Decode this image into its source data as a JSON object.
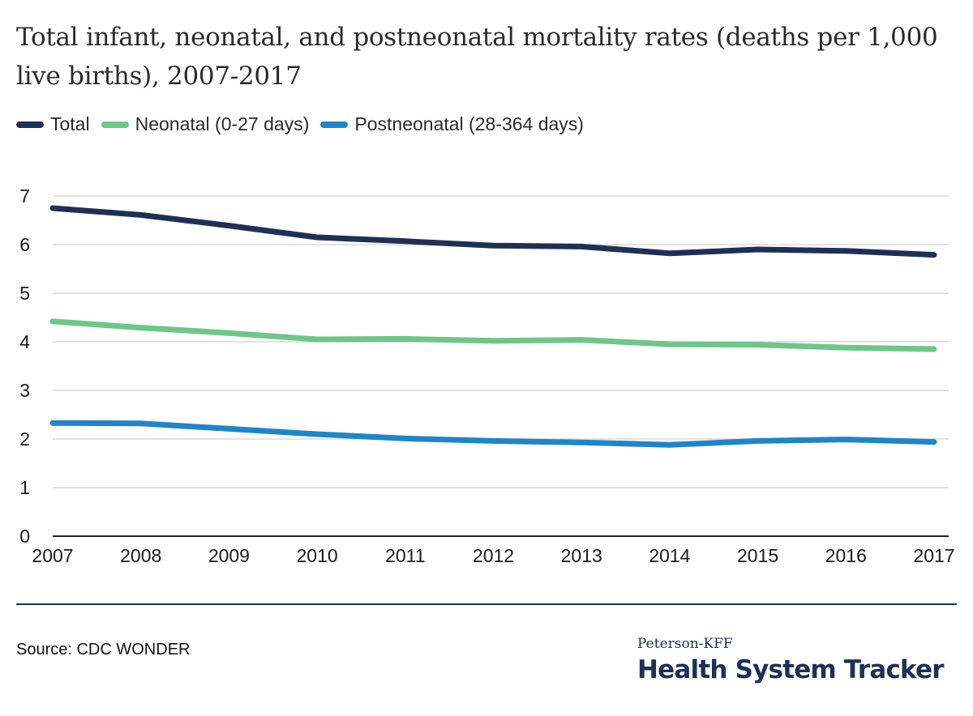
{
  "chart_data": {
    "type": "line",
    "title": "Total infant, neonatal, and postneonatal mortality rates (deaths per 1,000 live births), 2007-2017",
    "xlabel": "",
    "ylabel": "",
    "x": [
      "2007",
      "2008",
      "2009",
      "2010",
      "2011",
      "2012",
      "2013",
      "2014",
      "2015",
      "2016",
      "2017"
    ],
    "ylim": [
      0,
      7
    ],
    "yticks": [
      "0",
      "1",
      "2",
      "3",
      "4",
      "5",
      "6",
      "7"
    ],
    "grid": true,
    "legend_position": "top-left",
    "series": [
      {
        "name": "Total",
        "color": "#1f3057",
        "values": [
          6.75,
          6.61,
          6.39,
          6.15,
          6.07,
          5.98,
          5.96,
          5.82,
          5.9,
          5.87,
          5.79
        ]
      },
      {
        "name": "Neonatal (0-27 days)",
        "color": "#6cc788",
        "values": [
          4.42,
          4.29,
          4.18,
          4.05,
          4.06,
          4.02,
          4.04,
          3.95,
          3.94,
          3.88,
          3.85
        ]
      },
      {
        "name": "Postneonatal (28-364 days)",
        "color": "#1e86c8",
        "values": [
          2.33,
          2.32,
          2.21,
          2.1,
          2.01,
          1.96,
          1.93,
          1.88,
          1.96,
          1.99,
          1.94
        ]
      }
    ]
  },
  "footer": {
    "source": "Source: CDC WONDER",
    "logo_sub": "Peterson-KFF",
    "logo_main": "Health System Tracker"
  },
  "colors": {
    "gridline": "#d9d9d9",
    "axis": "#222222",
    "brand": "#1f3057"
  }
}
